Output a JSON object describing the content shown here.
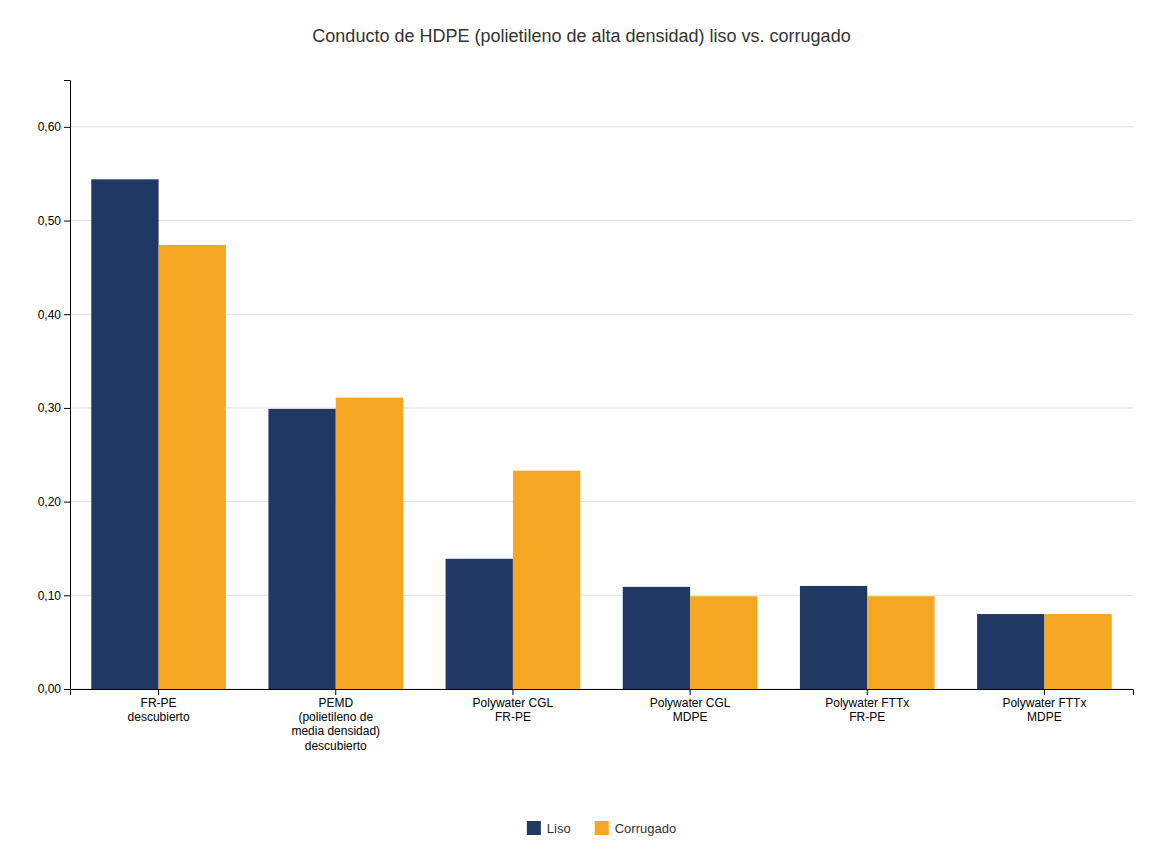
{
  "chart_data": {
    "type": "bar",
    "title": "Conducto de HDPE (polietileno de alta densidad) liso vs. corrugado",
    "categories": [
      "FR-PE\ndescubierto",
      "PEMD\n(polietileno de\nmedia densidad)\ndescubierto",
      "Polywater CGL\nFR-PE",
      "Polywater CGL\nMDPE",
      "Polywater FTTx\nFR-PE",
      "Polywater FTTx\nMDPE"
    ],
    "series": [
      {
        "name": "Liso",
        "color": "#1F3864",
        "values": [
          0.544,
          0.299,
          0.139,
          0.109,
          0.11,
          0.08
        ]
      },
      {
        "name": "Corrugado",
        "color": "#F5A623",
        "values": [
          0.474,
          0.311,
          0.233,
          0.099,
          0.099,
          0.08
        ]
      }
    ],
    "ylim": [
      0,
      0.65
    ],
    "yticks": [
      {
        "value": 0.0,
        "label": "0,00"
      },
      {
        "value": 0.1,
        "label": "0,10"
      },
      {
        "value": 0.2,
        "label": "0,20"
      },
      {
        "value": 0.3,
        "label": "0,30"
      },
      {
        "value": 0.4,
        "label": "0,40"
      },
      {
        "value": 0.5,
        "label": "0,50"
      },
      {
        "value": 0.6,
        "label": "0,60"
      }
    ],
    "grid": true,
    "legend": "bottom"
  }
}
